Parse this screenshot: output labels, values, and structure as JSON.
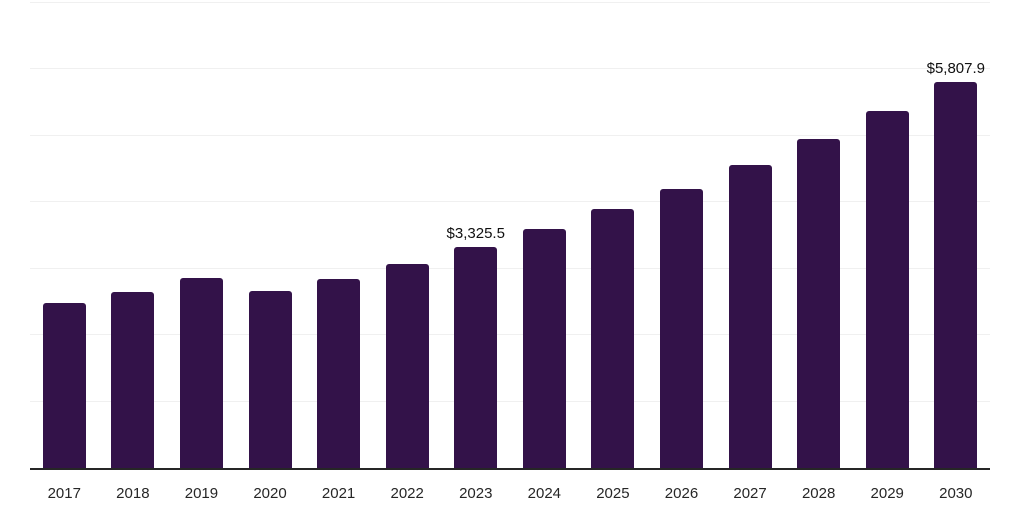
{
  "chart_data": {
    "type": "bar",
    "title": "",
    "xlabel": "",
    "ylabel": "",
    "categories": [
      "2017",
      "2018",
      "2019",
      "2020",
      "2021",
      "2022",
      "2023",
      "2024",
      "2025",
      "2026",
      "2027",
      "2028",
      "2029",
      "2030"
    ],
    "values": [
      2490,
      2650,
      2865,
      2665,
      2840,
      3065,
      3325.5,
      3595,
      3895,
      4195,
      4555,
      4955,
      5370,
      5807.9
    ],
    "labeled_points": [
      {
        "category": "2023",
        "label": "$3,325.5"
      },
      {
        "category": "2030",
        "label": "$5,807.9"
      }
    ],
    "ylim": [
      0,
      7000
    ],
    "gridline_step": 1000,
    "grid": true,
    "legend": false,
    "y_tick_labels_visible": false,
    "colors": {
      "bar": "#331249",
      "gridline": "#f0f0f0",
      "axis_line": "#262626",
      "tick_label": "#262626",
      "value_label": "#111111",
      "background": "#ffffff"
    }
  }
}
